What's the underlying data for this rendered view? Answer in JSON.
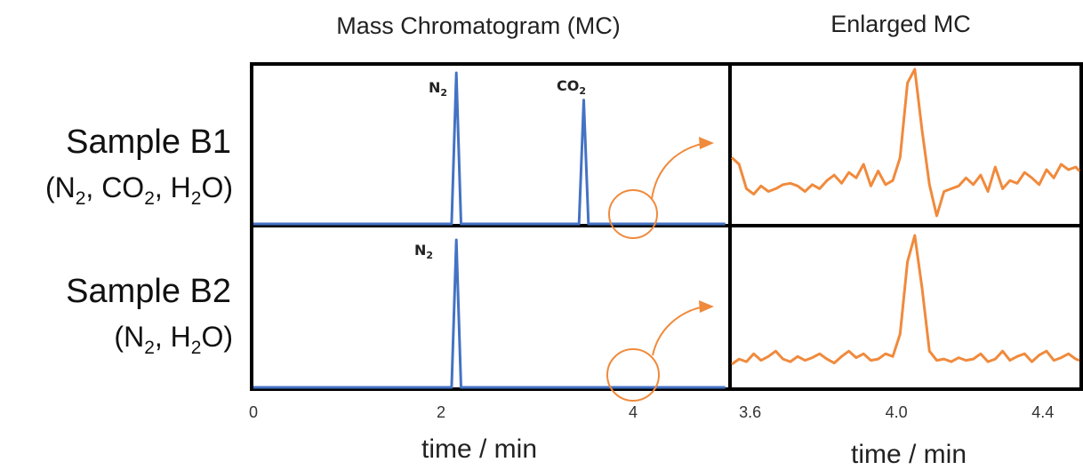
{
  "titles": {
    "left": "Mass Chromatogram (MC)",
    "right": "Enlarged MC"
  },
  "rows": [
    {
      "name": "Sample B1",
      "components": [
        "N2",
        "CO2",
        "H2O"
      ]
    },
    {
      "name": "Sample B2",
      "components": [
        "N2",
        "H2O"
      ]
    }
  ],
  "colors": {
    "mc_trace": "#4472c4",
    "enlarged_trace": "#f08a3c",
    "frame": "#000000"
  },
  "chart_data": [
    {
      "type": "line",
      "title": "Mass Chromatogram (MC)",
      "xlabel": "time / min",
      "ylabel": "",
      "xlim": [
        0,
        5
      ],
      "xticks": [
        0,
        2,
        4
      ],
      "panels": [
        {
          "sample": "Sample B1",
          "series": [
            {
              "x": [
                0,
                2.1,
                2.15,
                2.2,
                3.45,
                3.5,
                3.55,
                5
              ],
              "y": [
                0,
                0,
                1.0,
                0,
                0,
                0.82,
                0,
                0
              ]
            }
          ],
          "peak_labels": [
            {
              "x": 2.15,
              "label": "N2"
            },
            {
              "x": 3.5,
              "label": "CO2"
            }
          ],
          "zoom_marker": 4.0
        },
        {
          "sample": "Sample B2",
          "series": [
            {
              "x": [
                0,
                2.1,
                2.15,
                2.2,
                5
              ],
              "y": [
                0,
                0,
                1.0,
                0,
                0
              ]
            }
          ],
          "peak_labels": [
            {
              "x": 2.15,
              "label": "N2"
            }
          ],
          "zoom_marker": 4.0
        }
      ]
    },
    {
      "type": "line",
      "title": "Enlarged MC",
      "xlabel": "time / min",
      "ylabel": "",
      "xlim": [
        3.55,
        4.5
      ],
      "xticks": [
        "3.6",
        "4.0",
        "4.4"
      ],
      "panels": [
        {
          "sample": "Sample B1",
          "series": [
            {
              "x": [
                3.55,
                3.57,
                3.59,
                3.61,
                3.63,
                3.65,
                3.67,
                3.69,
                3.71,
                3.73,
                3.75,
                3.77,
                3.79,
                3.81,
                3.83,
                3.85,
                3.87,
                3.89,
                3.91,
                3.93,
                3.95,
                3.97,
                3.99,
                4.01,
                4.03,
                4.05,
                4.07,
                4.09,
                4.11,
                4.13,
                4.15,
                4.17,
                4.19,
                4.21,
                4.23,
                4.25,
                4.27,
                4.29,
                4.31,
                4.33,
                4.35,
                4.37,
                4.39,
                4.41,
                4.43,
                4.45,
                4.47,
                4.49,
                4.5
              ],
              "y": [
                0.35,
                0.3,
                0.12,
                0.08,
                0.14,
                0.1,
                0.12,
                0.15,
                0.16,
                0.14,
                0.1,
                0.15,
                0.12,
                0.18,
                0.22,
                0.16,
                0.24,
                0.2,
                0.3,
                0.14,
                0.25,
                0.15,
                0.18,
                0.35,
                0.9,
                1.0,
                0.55,
                0.15,
                -0.08,
                0.1,
                0.12,
                0.14,
                0.2,
                0.15,
                0.22,
                0.1,
                0.28,
                0.12,
                0.18,
                0.16,
                0.24,
                0.2,
                0.15,
                0.26,
                0.2,
                0.3,
                0.26,
                0.28,
                0.25
              ]
            }
          ]
        },
        {
          "sample": "Sample B2",
          "series": [
            {
              "x": [
                3.55,
                3.57,
                3.59,
                3.61,
                3.63,
                3.65,
                3.67,
                3.69,
                3.71,
                3.73,
                3.75,
                3.77,
                3.79,
                3.81,
                3.83,
                3.85,
                3.87,
                3.89,
                3.91,
                3.93,
                3.95,
                3.97,
                3.99,
                4.01,
                4.03,
                4.05,
                4.07,
                4.09,
                4.11,
                4.13,
                4.15,
                4.17,
                4.19,
                4.21,
                4.23,
                4.25,
                4.27,
                4.29,
                4.31,
                4.33,
                4.35,
                4.37,
                4.39,
                4.41,
                4.43,
                4.45,
                4.47,
                4.49,
                4.5
              ],
              "y": [
                0.02,
                0.06,
                0.04,
                0.1,
                0.05,
                0.08,
                0.12,
                0.06,
                0.04,
                0.08,
                0.05,
                0.07,
                0.1,
                0.06,
                0.03,
                0.08,
                0.12,
                0.07,
                0.1,
                0.05,
                0.06,
                0.1,
                0.08,
                0.25,
                0.8,
                1.0,
                0.6,
                0.12,
                0.05,
                0.06,
                0.04,
                0.07,
                0.05,
                0.06,
                0.1,
                0.04,
                0.06,
                0.12,
                0.05,
                0.08,
                0.1,
                0.04,
                0.09,
                0.12,
                0.05,
                0.07,
                0.1,
                0.06,
                0.05
              ]
            }
          ]
        }
      ]
    }
  ]
}
